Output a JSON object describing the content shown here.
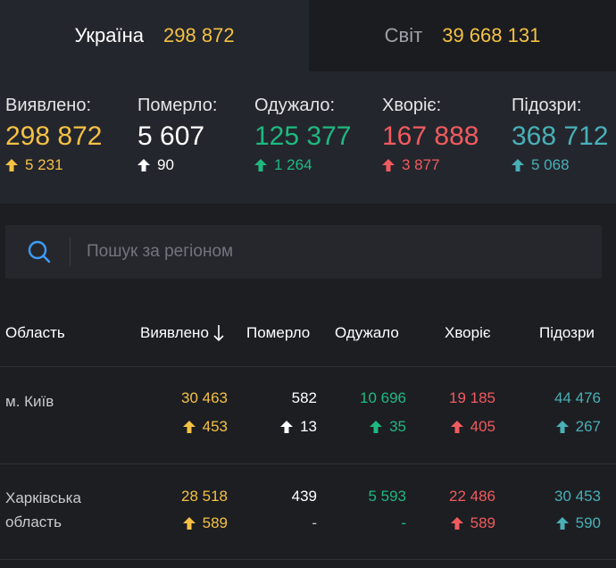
{
  "tabs": [
    {
      "name": "Україна",
      "value": "298 872"
    },
    {
      "name": "Світ",
      "value": "39 668 131"
    }
  ],
  "summary": [
    {
      "label": "Виявлено:",
      "value": "298 872",
      "delta": "5 231",
      "color": "#f4c144"
    },
    {
      "label": "Померло:",
      "value": "5 607",
      "delta": "90",
      "color": "#ffffff"
    },
    {
      "label": "Одужало:",
      "value": "125 377",
      "delta": "1 264",
      "color": "#1eb980"
    },
    {
      "label": "Хворіє:",
      "value": "167 888",
      "delta": "3 877",
      "color": "#f05b5f"
    },
    {
      "label": "Підозри:",
      "value": "368 712",
      "delta": "5 068",
      "color": "#49b0b7"
    }
  ],
  "search": {
    "placeholder": "Пошук за регіоном",
    "icon": "search-icon"
  },
  "table": {
    "headers": {
      "region": "Область",
      "detected": "Виявлено",
      "deaths": "Померло",
      "recovered": "Одужало",
      "sick": "Хворіє",
      "suspected": "Підозри"
    },
    "sort_icon": "sort-down-arrow-icon",
    "rows": [
      {
        "region": "м. Київ",
        "detected": "30 463",
        "detected_delta": "453",
        "deaths": "582",
        "deaths_delta": "13",
        "recovered": "10 696",
        "recovered_delta": "35",
        "sick": "19 185",
        "sick_delta": "405",
        "suspected": "44 476",
        "suspected_delta": "267"
      },
      {
        "region_line1": "Харківська",
        "region_line2": "область",
        "detected": "28 518",
        "detected_delta": "589",
        "deaths": "439",
        "deaths_delta": "-",
        "recovered": "5 593",
        "recovered_delta": "-",
        "sick": "22 486",
        "sick_delta": "589",
        "suspected": "30 453",
        "suspected_delta": "590"
      }
    ]
  }
}
